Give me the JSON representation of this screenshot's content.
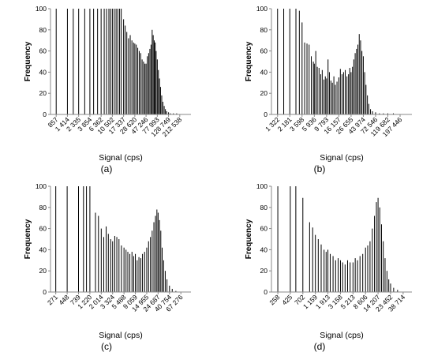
{
  "chart_data": [
    {
      "panel_label": "(a)",
      "type": "bar",
      "xlabel": "Signal (cps)",
      "ylabel": "Frequency",
      "ylim": [
        0,
        100
      ],
      "yticks": [
        0,
        20,
        40,
        60,
        80,
        100
      ],
      "x_scale": "log",
      "xlim": [
        665,
        350000
      ],
      "xtick_labels": [
        "857",
        "1 414",
        "2 335",
        "3 854",
        "6 362",
        "10 502",
        "17 337",
        "28 620",
        "47 246",
        "77 993",
        "128 749",
        "212 538"
      ],
      "grid": false,
      "bar_positions": [
        {
          "x": 857,
          "y": 100
        },
        {
          "x": 1414,
          "y": 100
        },
        {
          "x": 1836,
          "y": 100
        },
        {
          "x": 2335,
          "y": 100
        },
        {
          "x": 3060,
          "y": 100
        },
        {
          "x": 3854,
          "y": 100
        },
        {
          "x": 4550,
          "y": 100
        },
        {
          "x": 5430,
          "y": 100
        },
        {
          "x": 6362,
          "y": 100
        },
        {
          "x": 7300,
          "y": 100
        },
        {
          "x": 8100,
          "y": 100
        },
        {
          "x": 9000,
          "y": 100
        },
        {
          "x": 9700,
          "y": 100
        },
        {
          "x": 10502,
          "y": 100
        },
        {
          "x": 11400,
          "y": 100
        },
        {
          "x": 12400,
          "y": 100
        },
        {
          "x": 13400,
          "y": 100
        },
        {
          "x": 14500,
          "y": 100
        },
        {
          "x": 15600,
          "y": 100
        },
        {
          "x": 17337,
          "y": 90
        },
        {
          "x": 18600,
          "y": 84
        },
        {
          "x": 20000,
          "y": 78
        },
        {
          "x": 21600,
          "y": 72
        },
        {
          "x": 23300,
          "y": 75
        },
        {
          "x": 25100,
          "y": 70
        },
        {
          "x": 27000,
          "y": 68
        },
        {
          "x": 28620,
          "y": 67
        },
        {
          "x": 30500,
          "y": 66
        },
        {
          "x": 32600,
          "y": 63
        },
        {
          "x": 34800,
          "y": 60
        },
        {
          "x": 37100,
          "y": 58
        },
        {
          "x": 39600,
          "y": 52
        },
        {
          "x": 42200,
          "y": 50
        },
        {
          "x": 44800,
          "y": 48
        },
        {
          "x": 47246,
          "y": 48
        },
        {
          "x": 50000,
          "y": 55
        },
        {
          "x": 53000,
          "y": 58
        },
        {
          "x": 56000,
          "y": 62
        },
        {
          "x": 59000,
          "y": 66
        },
        {
          "x": 62000,
          "y": 80
        },
        {
          "x": 65000,
          "y": 75
        },
        {
          "x": 68000,
          "y": 70
        },
        {
          "x": 71000,
          "y": 68
        },
        {
          "x": 74000,
          "y": 60
        },
        {
          "x": 77993,
          "y": 52
        },
        {
          "x": 82000,
          "y": 42
        },
        {
          "x": 86000,
          "y": 34
        },
        {
          "x": 90000,
          "y": 26
        },
        {
          "x": 95000,
          "y": 18
        },
        {
          "x": 100000,
          "y": 12
        },
        {
          "x": 106000,
          "y": 8
        },
        {
          "x": 112000,
          "y": 5
        },
        {
          "x": 118000,
          "y": 3
        },
        {
          "x": 128749,
          "y": 2
        },
        {
          "x": 140000,
          "y": 1
        },
        {
          "x": 160000,
          "y": 1
        },
        {
          "x": 185000,
          "y": 1
        },
        {
          "x": 212538,
          "y": 0
        }
      ]
    },
    {
      "panel_label": "(b)",
      "type": "bar",
      "xlabel": "Signal (cps)",
      "ylabel": "Frequency",
      "ylim": [
        0,
        100
      ],
      "yticks": [
        0,
        20,
        40,
        60,
        80,
        100
      ],
      "x_scale": "log",
      "xlim": [
        1030,
        320000
      ],
      "xtick_labels": [
        "1 322",
        "2 181",
        "3 598",
        "5 936",
        "9 793",
        "16 157",
        "26 655",
        "43 974",
        "72 546",
        "119 682",
        "197 446"
      ],
      "grid": false,
      "bar_positions": [
        {
          "x": 1322,
          "y": 100
        },
        {
          "x": 1700,
          "y": 100
        },
        {
          "x": 2181,
          "y": 100
        },
        {
          "x": 2800,
          "y": 100
        },
        {
          "x": 3220,
          "y": 98
        },
        {
          "x": 3598,
          "y": 87
        },
        {
          "x": 4000,
          "y": 68
        },
        {
          "x": 4400,
          "y": 67
        },
        {
          "x": 4800,
          "y": 66
        },
        {
          "x": 5250,
          "y": 55
        },
        {
          "x": 5700,
          "y": 50
        },
        {
          "x": 5936,
          "y": 48
        },
        {
          "x": 6300,
          "y": 60
        },
        {
          "x": 6700,
          "y": 45
        },
        {
          "x": 7200,
          "y": 44
        },
        {
          "x": 7700,
          "y": 38
        },
        {
          "x": 8200,
          "y": 42
        },
        {
          "x": 8800,
          "y": 33
        },
        {
          "x": 9300,
          "y": 36
        },
        {
          "x": 9793,
          "y": 34
        },
        {
          "x": 10400,
          "y": 52
        },
        {
          "x": 11000,
          "y": 40
        },
        {
          "x": 11700,
          "y": 32
        },
        {
          "x": 12400,
          "y": 30
        },
        {
          "x": 13200,
          "y": 36
        },
        {
          "x": 14000,
          "y": 28
        },
        {
          "x": 15000,
          "y": 31
        },
        {
          "x": 16157,
          "y": 35
        },
        {
          "x": 17200,
          "y": 43
        },
        {
          "x": 18400,
          "y": 38
        },
        {
          "x": 19600,
          "y": 40
        },
        {
          "x": 21000,
          "y": 42
        },
        {
          "x": 22500,
          "y": 36
        },
        {
          "x": 24000,
          "y": 38
        },
        {
          "x": 25300,
          "y": 44
        },
        {
          "x": 26655,
          "y": 40
        },
        {
          "x": 28200,
          "y": 45
        },
        {
          "x": 29800,
          "y": 52
        },
        {
          "x": 31500,
          "y": 58
        },
        {
          "x": 33300,
          "y": 62
        },
        {
          "x": 35200,
          "y": 66
        },
        {
          "x": 37200,
          "y": 76
        },
        {
          "x": 39300,
          "y": 70
        },
        {
          "x": 41500,
          "y": 60
        },
        {
          "x": 43974,
          "y": 55
        },
        {
          "x": 46500,
          "y": 40
        },
        {
          "x": 49000,
          "y": 28
        },
        {
          "x": 52000,
          "y": 18
        },
        {
          "x": 55000,
          "y": 10
        },
        {
          "x": 59000,
          "y": 5
        },
        {
          "x": 64000,
          "y": 3
        },
        {
          "x": 72546,
          "y": 2
        },
        {
          "x": 85000,
          "y": 1
        },
        {
          "x": 100000,
          "y": 1
        },
        {
          "x": 119682,
          "y": 1
        },
        {
          "x": 150000,
          "y": 1
        },
        {
          "x": 197446,
          "y": 0
        }
      ]
    },
    {
      "panel_label": "(c)",
      "type": "bar",
      "xlabel": "Signal (cps)",
      "ylabel": "Frequency",
      "ylim": [
        0,
        100
      ],
      "yticks": [
        0,
        20,
        40,
        60,
        80,
        100
      ],
      "x_scale": "log",
      "xlim": [
        215,
        105000
      ],
      "xtick_labels": [
        "271",
        "448",
        "739",
        "1 220",
        "2 014",
        "3 324",
        "5 488",
        "9 059",
        "14 955",
        "24 687",
        "40 754",
        "67 276"
      ],
      "grid": false,
      "bar_positions": [
        {
          "x": 271,
          "y": 100
        },
        {
          "x": 448,
          "y": 100
        },
        {
          "x": 739,
          "y": 100
        },
        {
          "x": 920,
          "y": 100
        },
        {
          "x": 1050,
          "y": 100
        },
        {
          "x": 1220,
          "y": 100
        },
        {
          "x": 1560,
          "y": 75
        },
        {
          "x": 1780,
          "y": 72
        },
        {
          "x": 2014,
          "y": 60
        },
        {
          "x": 2250,
          "y": 52
        },
        {
          "x": 2500,
          "y": 62
        },
        {
          "x": 2750,
          "y": 55
        },
        {
          "x": 3050,
          "y": 50
        },
        {
          "x": 3324,
          "y": 48
        },
        {
          "x": 3650,
          "y": 53
        },
        {
          "x": 4000,
          "y": 52
        },
        {
          "x": 4400,
          "y": 50
        },
        {
          "x": 4900,
          "y": 44
        },
        {
          "x": 5488,
          "y": 42
        },
        {
          "x": 6000,
          "y": 40
        },
        {
          "x": 6500,
          "y": 38
        },
        {
          "x": 7100,
          "y": 36
        },
        {
          "x": 7800,
          "y": 38
        },
        {
          "x": 8400,
          "y": 34
        },
        {
          "x": 9059,
          "y": 36
        },
        {
          "x": 9800,
          "y": 30
        },
        {
          "x": 10600,
          "y": 33
        },
        {
          "x": 11500,
          "y": 32
        },
        {
          "x": 12400,
          "y": 36
        },
        {
          "x": 13600,
          "y": 38
        },
        {
          "x": 14955,
          "y": 42
        },
        {
          "x": 16200,
          "y": 48
        },
        {
          "x": 17600,
          "y": 52
        },
        {
          "x": 19000,
          "y": 58
        },
        {
          "x": 20500,
          "y": 66
        },
        {
          "x": 22000,
          "y": 72
        },
        {
          "x": 23400,
          "y": 78
        },
        {
          "x": 24687,
          "y": 75
        },
        {
          "x": 26200,
          "y": 68
        },
        {
          "x": 27800,
          "y": 58
        },
        {
          "x": 29500,
          "y": 42
        },
        {
          "x": 31500,
          "y": 30
        },
        {
          "x": 33800,
          "y": 20
        },
        {
          "x": 36500,
          "y": 12
        },
        {
          "x": 40754,
          "y": 6
        },
        {
          "x": 46000,
          "y": 3
        },
        {
          "x": 54000,
          "y": 1
        },
        {
          "x": 67276,
          "y": 0
        }
      ]
    },
    {
      "panel_label": "(d)",
      "type": "bar",
      "xlabel": "Signal (cps)",
      "ylabel": "Frequency",
      "ylim": [
        0,
        100
      ],
      "yticks": [
        0,
        20,
        40,
        60,
        80,
        100
      ],
      "x_scale": "log",
      "xlim": [
        200,
        55000
      ],
      "xtick_labels": [
        "258",
        "425",
        "702",
        "1 159",
        "1 913",
        "3 158",
        "5 213",
        "8 606",
        "14 207",
        "23 452",
        "38 714"
      ],
      "grid": false,
      "bar_positions": [
        {
          "x": 258,
          "y": 100
        },
        {
          "x": 425,
          "y": 100
        },
        {
          "x": 530,
          "y": 100
        },
        {
          "x": 702,
          "y": 89
        },
        {
          "x": 920,
          "y": 66
        },
        {
          "x": 1040,
          "y": 61
        },
        {
          "x": 1159,
          "y": 54
        },
        {
          "x": 1300,
          "y": 50
        },
        {
          "x": 1460,
          "y": 45
        },
        {
          "x": 1640,
          "y": 40
        },
        {
          "x": 1780,
          "y": 38
        },
        {
          "x": 1913,
          "y": 40
        },
        {
          "x": 2100,
          "y": 36
        },
        {
          "x": 2350,
          "y": 34
        },
        {
          "x": 2600,
          "y": 30
        },
        {
          "x": 2880,
          "y": 32
        },
        {
          "x": 3158,
          "y": 30
        },
        {
          "x": 3450,
          "y": 28
        },
        {
          "x": 3800,
          "y": 26
        },
        {
          "x": 4200,
          "y": 30
        },
        {
          "x": 4650,
          "y": 28
        },
        {
          "x": 5213,
          "y": 28
        },
        {
          "x": 5700,
          "y": 32
        },
        {
          "x": 6250,
          "y": 30
        },
        {
          "x": 6900,
          "y": 34
        },
        {
          "x": 7700,
          "y": 36
        },
        {
          "x": 8606,
          "y": 42
        },
        {
          "x": 9400,
          "y": 44
        },
        {
          "x": 10300,
          "y": 48
        },
        {
          "x": 11300,
          "y": 60
        },
        {
          "x": 12300,
          "y": 72
        },
        {
          "x": 13300,
          "y": 85
        },
        {
          "x": 14207,
          "y": 89
        },
        {
          "x": 15200,
          "y": 80
        },
        {
          "x": 16300,
          "y": 64
        },
        {
          "x": 17500,
          "y": 48
        },
        {
          "x": 18800,
          "y": 32
        },
        {
          "x": 20300,
          "y": 20
        },
        {
          "x": 21800,
          "y": 12
        },
        {
          "x": 23452,
          "y": 8
        },
        {
          "x": 26500,
          "y": 4
        },
        {
          "x": 31000,
          "y": 2
        },
        {
          "x": 38714,
          "y": 0
        }
      ]
    }
  ]
}
